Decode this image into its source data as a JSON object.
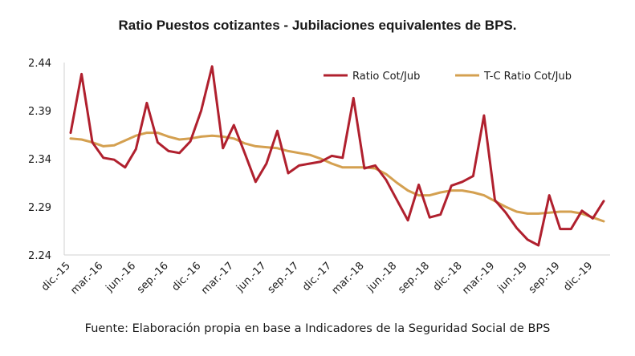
{
  "chart_data": {
    "type": "line",
    "title": "Ratio Puestos cotizantes - Jubilaciones  equivalentes de BPS.",
    "source": "Fuente: Elaboración propia en base a Indicadores de la Seguridad Social de BPS",
    "xlabel": "",
    "ylabel": "",
    "ylim": [
      2.24,
      2.44
    ],
    "y_ticks": [
      "2.24",
      "2.29",
      "2.34",
      "2.39",
      "2.44"
    ],
    "x_tick_labels": [
      "dic.-15",
      "mar.-16",
      "jun.-16",
      "sep.-16",
      "dic.-16",
      "mar.-17",
      "jun.-17",
      "sep.-17",
      "dic.-17",
      "mar.-18",
      "jun.-18",
      "sep.-18",
      "dic.-18",
      "mar.-19",
      "jun.-19",
      "sep.-19",
      "dic.-19"
    ],
    "grid": false,
    "legend_position": "top-right",
    "series": [
      {
        "name": "Ratio Cot/Jub",
        "color": "#b0202e",
        "values": [
          2.367,
          2.428,
          2.357,
          2.341,
          2.339,
          2.331,
          2.35,
          2.398,
          2.357,
          2.348,
          2.346,
          2.358,
          2.39,
          2.436,
          2.351,
          2.375,
          2.346,
          2.316,
          2.335,
          2.369,
          2.325,
          2.333,
          2.335,
          2.337,
          2.343,
          2.341,
          2.403,
          2.33,
          2.333,
          2.318,
          2.297,
          2.276,
          2.313,
          2.279,
          2.282,
          2.312,
          2.316,
          2.322,
          2.385,
          2.297,
          2.284,
          2.268,
          2.256,
          2.25,
          2.302,
          2.267,
          2.267,
          2.286,
          2.278,
          2.296
        ]
      },
      {
        "name": "T-C Ratio Cot/Jub",
        "color": "#d4a050",
        "values": [
          2.361,
          2.36,
          2.357,
          2.353,
          2.354,
          2.359,
          2.364,
          2.367,
          2.367,
          2.363,
          2.36,
          2.361,
          2.363,
          2.364,
          2.363,
          2.361,
          2.356,
          2.353,
          2.352,
          2.351,
          2.348,
          2.346,
          2.344,
          2.34,
          2.335,
          2.331,
          2.331,
          2.331,
          2.33,
          2.324,
          2.315,
          2.307,
          2.302,
          2.302,
          2.305,
          2.307,
          2.307,
          2.305,
          2.302,
          2.296,
          2.29,
          2.285,
          2.283,
          2.283,
          2.284,
          2.285,
          2.285,
          2.283,
          2.279,
          2.275
        ]
      }
    ]
  }
}
